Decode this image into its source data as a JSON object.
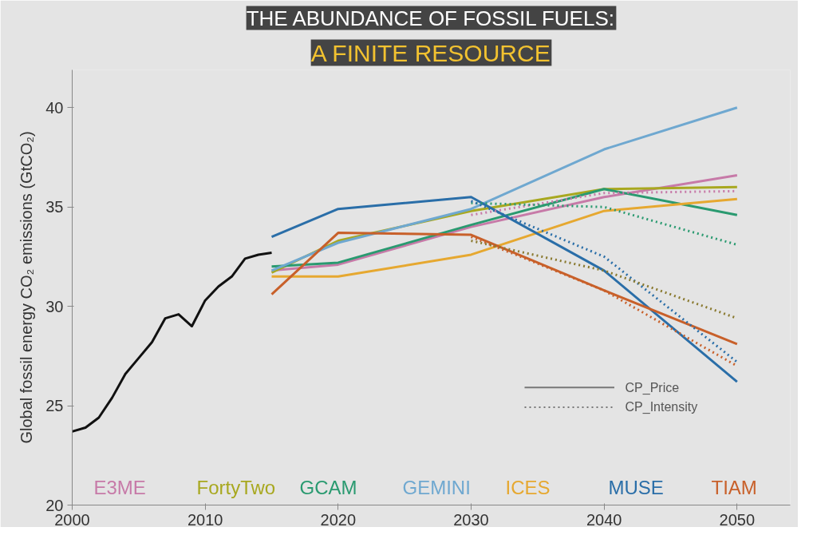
{
  "chart_data": {
    "type": "line",
    "title": "THE ABUNDANCE OF FOSSIL FUELS:",
    "subtitle": "A FINITE RESOURCE",
    "ylabel": "Global fossil energy CO₂ emissions (GtCO₂)",
    "xlim": [
      2000,
      2054
    ],
    "xticks": [
      2000,
      2010,
      2020,
      2030,
      2040,
      2050
    ],
    "ylim": [
      20,
      41.9
    ],
    "yticks": [
      20,
      25,
      30,
      35,
      40
    ],
    "legend": "bottom",
    "annotations": [
      "CP_Price",
      "CP_Intensity"
    ],
    "series": [
      {
        "color": "#111111",
        "line_style": "solid",
        "x": [
          2000,
          2001,
          2002,
          2003,
          2004,
          2005,
          2006,
          2007,
          2008,
          2009,
          2010,
          2011,
          2012,
          2013,
          2014,
          2015
        ],
        "values": [
          23.7,
          23.9,
          24.4,
          25.4,
          26.6,
          27.4,
          28.2,
          29.4,
          29.6,
          29.0,
          30.3,
          31.0,
          31.5,
          32.4,
          32.6,
          32.7
        ]
      },
      {
        "name": "E3ME",
        "color": "#c77aa8",
        "line_style": "solid",
        "x": [
          2015,
          2020,
          2030,
          2040,
          2050
        ],
        "values": [
          31.8,
          32.1,
          34.0,
          35.5,
          36.6
        ]
      },
      {
        "name": "FortyTwo",
        "color": "#a8a820",
        "line_style": "solid",
        "x": [
          2015,
          2020,
          2030,
          2040,
          2050
        ],
        "values": [
          31.7,
          33.3,
          34.8,
          35.9,
          36.0
        ]
      },
      {
        "name": "GCAM",
        "color": "#2a9a70",
        "line_style": "solid",
        "x": [
          2015,
          2020,
          2030,
          2040,
          2050
        ],
        "values": [
          32.0,
          32.2,
          34.1,
          35.9,
          34.6
        ]
      },
      {
        "name": "GEMINI",
        "color": "#6fa8d0",
        "line_style": "solid",
        "x": [
          2015,
          2020,
          2030,
          2040,
          2050
        ],
        "values": [
          31.8,
          33.2,
          34.9,
          37.9,
          40.0
        ]
      },
      {
        "name": "ICES",
        "color": "#e6a830",
        "line_style": "solid",
        "x": [
          2015,
          2020,
          2030,
          2040,
          2050
        ],
        "values": [
          31.5,
          31.5,
          32.6,
          34.8,
          35.4
        ]
      },
      {
        "name": "MUSE",
        "color": "#2a6ea8",
        "line_style": "solid",
        "x": [
          2015,
          2020,
          2030,
          2040,
          2050
        ],
        "values": [
          33.5,
          34.9,
          35.5,
          31.8,
          26.2
        ]
      },
      {
        "name": "TIAM",
        "color": "#c8602a",
        "line_style": "solid",
        "x": [
          2015,
          2020,
          2030,
          2040,
          2050
        ],
        "values": [
          30.6,
          33.7,
          33.6,
          30.8,
          28.1
        ]
      },
      {
        "color": "#c77aa8",
        "line_style": "dotted",
        "x": [
          2030,
          2040,
          2050
        ],
        "values": [
          34.6,
          35.7,
          35.8
        ]
      },
      {
        "color": "#2a9a70",
        "line_style": "dotted",
        "x": [
          2030,
          2040,
          2050
        ],
        "values": [
          35.2,
          35.0,
          33.1
        ]
      },
      {
        "color": "#2a6ea8",
        "line_style": "dotted",
        "x": [
          2030,
          2040,
          2050
        ],
        "values": [
          35.3,
          32.5,
          27.2
        ]
      },
      {
        "color": "#c8602a",
        "line_style": "dotted",
        "x": [
          2030,
          2040,
          2050
        ],
        "values": [
          33.5,
          30.8,
          27.0
        ]
      },
      {
        "color": "#8a7a30",
        "line_style": "dotted",
        "x": [
          2030,
          2040,
          2050
        ],
        "values": [
          33.3,
          31.8,
          29.4
        ]
      }
    ]
  }
}
